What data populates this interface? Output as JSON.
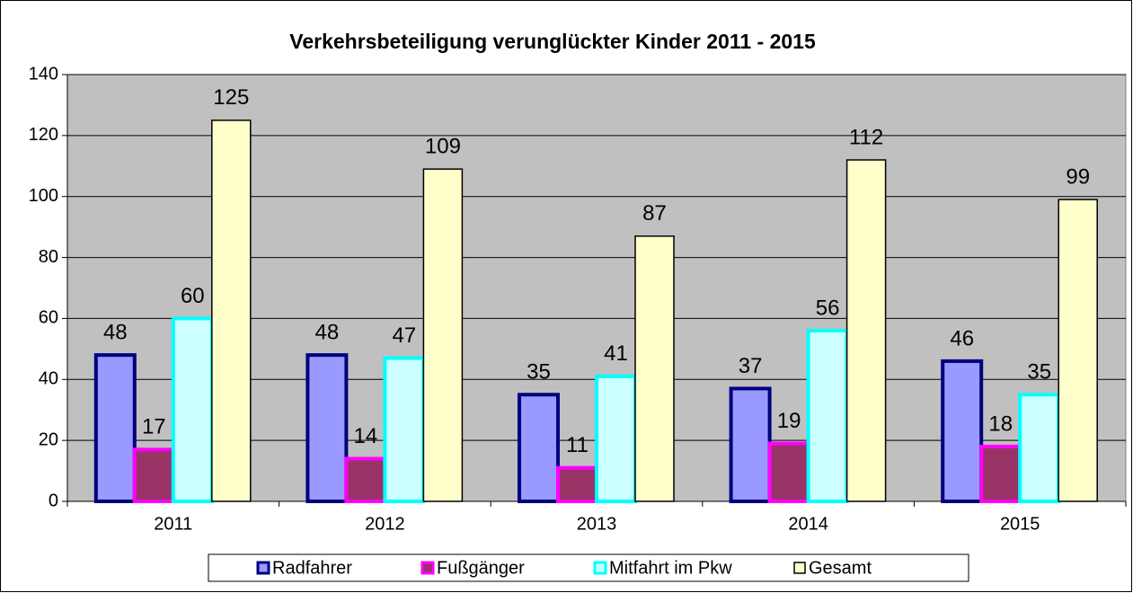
{
  "chart_data": {
    "type": "bar",
    "title": "Verkehrsbeteiligung verunglückter Kinder 2011 - 2015",
    "categories": [
      "2011",
      "2012",
      "2013",
      "2014",
      "2015"
    ],
    "series": [
      {
        "name": "Radfahrer",
        "color": "#9999ff",
        "edge_color": "#000080",
        "values": [
          48,
          48,
          35,
          37,
          46
        ]
      },
      {
        "name": "Fußgänger",
        "color": "#993366",
        "edge_color": "#ff00ff",
        "values": [
          17,
          14,
          11,
          19,
          18
        ]
      },
      {
        "name": "Mitfahrt im Pkw",
        "color": "#ccffff",
        "edge_color": "#00ffff",
        "values": [
          60,
          47,
          41,
          56,
          35
        ]
      },
      {
        "name": "Gesamt",
        "color": "#ffffcc",
        "edge_color": "#000000",
        "values": [
          125,
          109,
          87,
          112,
          99
        ]
      }
    ],
    "ylim": [
      0,
      140
    ],
    "yticks": [
      0,
      20,
      40,
      60,
      80,
      100,
      120,
      140
    ],
    "grid": true,
    "legend": "bottom"
  }
}
